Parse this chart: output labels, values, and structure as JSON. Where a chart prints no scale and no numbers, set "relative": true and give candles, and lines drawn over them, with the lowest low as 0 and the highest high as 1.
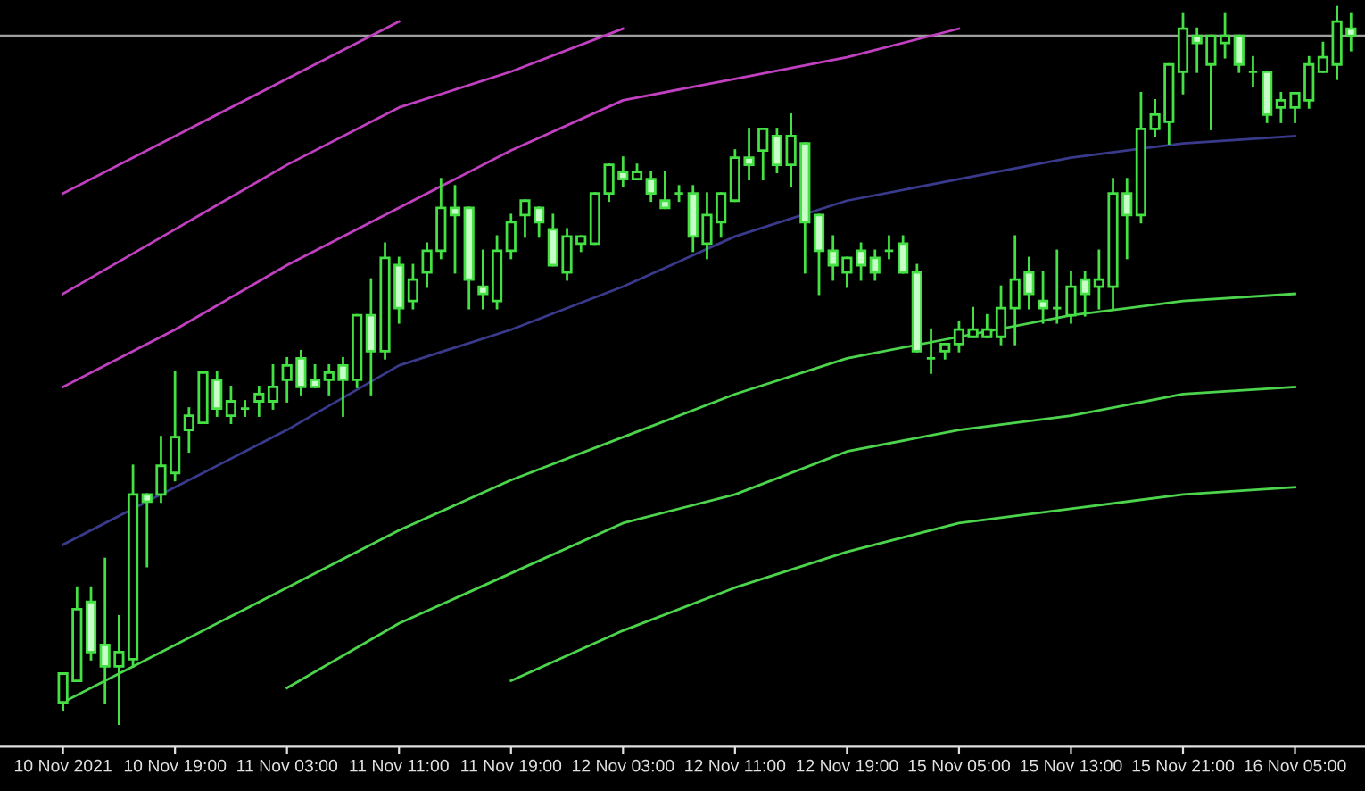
{
  "chart_data": {
    "type": "candlestick",
    "relative": true,
    "tick_labels": "x",
    "grid": false,
    "legend": false,
    "color": "#44e044",
    "categories": [
      "10 Nov 2021",
      null,
      null,
      null,
      null,
      null,
      null,
      null,
      "10 Nov 19:00",
      null,
      null,
      null,
      null,
      null,
      null,
      null,
      "11 Nov 03:00",
      null,
      null,
      null,
      null,
      null,
      null,
      null,
      "11 Nov 11:00",
      null,
      null,
      null,
      null,
      null,
      null,
      null,
      "11 Nov 19:00",
      null,
      null,
      null,
      null,
      null,
      null,
      null,
      "12 Nov 03:00",
      null,
      null,
      null,
      null,
      null,
      null,
      null,
      "12 Nov 11:00",
      null,
      null,
      null,
      null,
      null,
      null,
      null,
      "12 Nov 19:00",
      null,
      null,
      null,
      null,
      null,
      null,
      null,
      "15 Nov 05:00",
      null,
      null,
      null,
      null,
      null,
      null,
      null,
      "15 Nov 13:00",
      null,
      null,
      null,
      null,
      null,
      null,
      null,
      "15 Nov 21:00",
      null,
      null,
      null,
      null,
      null,
      null,
      null,
      "16 Nov 05:00",
      null,
      null,
      null,
      null
    ],
    "ohlc": [
      [
        0.03,
        0.07,
        0.02,
        0.07
      ],
      [
        0.06,
        0.19,
        0.06,
        0.16
      ],
      [
        0.17,
        0.19,
        0.09,
        0.1
      ],
      [
        0.11,
        0.23,
        0.03,
        0.08
      ],
      [
        0.08,
        0.15,
        0,
        0.1
      ],
      [
        0.09,
        0.36,
        0.08,
        0.32
      ],
      [
        0.32,
        0.32,
        0.22,
        0.31
      ],
      [
        0.32,
        0.4,
        0.31,
        0.36
      ],
      [
        0.35,
        0.49,
        0.34,
        0.4
      ],
      [
        0.41,
        0.44,
        0.38,
        0.43
      ],
      [
        0.42,
        0.49,
        0.42,
        0.49
      ],
      [
        0.48,
        0.49,
        0.43,
        0.44
      ],
      [
        0.43,
        0.47,
        0.42,
        0.45
      ],
      [
        0.44,
        0.45,
        0.43,
        0.44
      ],
      [
        0.45,
        0.47,
        0.43,
        0.46
      ],
      [
        0.45,
        0.5,
        0.44,
        0.47
      ],
      [
        0.48,
        0.51,
        0.45,
        0.5
      ],
      [
        0.51,
        0.52,
        0.46,
        0.47
      ],
      [
        0.48,
        0.5,
        0.47,
        0.47
      ],
      [
        0.48,
        0.5,
        0.46,
        0.49
      ],
      [
        0.5,
        0.51,
        0.43,
        0.48
      ],
      [
        0.48,
        0.57,
        0.47,
        0.57
      ],
      [
        0.57,
        0.62,
        0.46,
        0.52
      ],
      [
        0.52,
        0.67,
        0.51,
        0.65
      ],
      [
        0.64,
        0.65,
        0.56,
        0.58
      ],
      [
        0.59,
        0.64,
        0.58,
        0.62
      ],
      [
        0.63,
        0.67,
        0.61,
        0.66
      ],
      [
        0.66,
        0.76,
        0.65,
        0.72
      ],
      [
        0.72,
        0.75,
        0.63,
        0.71
      ],
      [
        0.72,
        0.72,
        0.58,
        0.62
      ],
      [
        0.61,
        0.66,
        0.58,
        0.6
      ],
      [
        0.59,
        0.68,
        0.58,
        0.66
      ],
      [
        0.66,
        0.71,
        0.65,
        0.7
      ],
      [
        0.71,
        0.73,
        0.68,
        0.73
      ],
      [
        0.72,
        0.72,
        0.68,
        0.7
      ],
      [
        0.69,
        0.71,
        0.64,
        0.64
      ],
      [
        0.63,
        0.69,
        0.62,
        0.68
      ],
      [
        0.67,
        0.68,
        0.66,
        0.68
      ],
      [
        0.67,
        0.74,
        0.67,
        0.74
      ],
      [
        0.74,
        0.78,
        0.73,
        0.78
      ],
      [
        0.77,
        0.79,
        0.75,
        0.76
      ],
      [
        0.76,
        0.78,
        0.76,
        0.77
      ],
      [
        0.76,
        0.77,
        0.73,
        0.74
      ],
      [
        0.73,
        0.77,
        0.72,
        0.72
      ],
      [
        0.74,
        0.75,
        0.73,
        0.74
      ],
      [
        0.74,
        0.75,
        0.66,
        0.68
      ],
      [
        0.67,
        0.74,
        0.65,
        0.71
      ],
      [
        0.7,
        0.74,
        0.68,
        0.74
      ],
      [
        0.73,
        0.8,
        0.73,
        0.79
      ],
      [
        0.79,
        0.83,
        0.76,
        0.78
      ],
      [
        0.8,
        0.83,
        0.76,
        0.83
      ],
      [
        0.82,
        0.83,
        0.77,
        0.78
      ],
      [
        0.78,
        0.85,
        0.75,
        0.82
      ],
      [
        0.81,
        0.81,
        0.63,
        0.7
      ],
      [
        0.71,
        0.71,
        0.6,
        0.66
      ],
      [
        0.66,
        0.68,
        0.62,
        0.64
      ],
      [
        0.63,
        0.65,
        0.61,
        0.65
      ],
      [
        0.66,
        0.67,
        0.62,
        0.64
      ],
      [
        0.65,
        0.66,
        0.62,
        0.63
      ],
      [
        0.66,
        0.68,
        0.65,
        0.66
      ],
      [
        0.67,
        0.68,
        0.63,
        0.63
      ],
      [
        0.63,
        0.64,
        0.52,
        0.52
      ],
      [
        0.51,
        0.55,
        0.49,
        0.51
      ],
      [
        0.52,
        0.53,
        0.51,
        0.53
      ],
      [
        0.53,
        0.56,
        0.52,
        0.55
      ],
      [
        0.54,
        0.58,
        0.54,
        0.55
      ],
      [
        0.54,
        0.57,
        0.54,
        0.55
      ],
      [
        0.54,
        0.61,
        0.53,
        0.58
      ],
      [
        0.58,
        0.68,
        0.53,
        0.62
      ],
      [
        0.63,
        0.65,
        0.58,
        0.6
      ],
      [
        0.59,
        0.63,
        0.56,
        0.58
      ],
      [
        0.58,
        0.66,
        0.56,
        0.58
      ],
      [
        0.57,
        0.63,
        0.56,
        0.61
      ],
      [
        0.62,
        0.63,
        0.57,
        0.6
      ],
      [
        0.61,
        0.66,
        0.58,
        0.62
      ],
      [
        0.61,
        0.76,
        0.58,
        0.74
      ],
      [
        0.74,
        0.76,
        0.65,
        0.71
      ],
      [
        0.71,
        0.88,
        0.7,
        0.83
      ],
      [
        0.83,
        0.87,
        0.82,
        0.85
      ],
      [
        0.84,
        0.92,
        0.81,
        0.92
      ],
      [
        0.91,
        0.99,
        0.88,
        0.97
      ],
      [
        0.96,
        0.97,
        0.91,
        0.95
      ],
      [
        0.92,
        0.96,
        0.83,
        0.96
      ],
      [
        0.95,
        0.99,
        0.93,
        0.96
      ],
      [
        0.96,
        0.96,
        0.91,
        0.92
      ],
      [
        0.91,
        0.93,
        0.89,
        0.91
      ],
      [
        0.91,
        0.91,
        0.84,
        0.85
      ],
      [
        0.86,
        0.88,
        0.84,
        0.87
      ],
      [
        0.86,
        0.88,
        0.84,
        0.88
      ],
      [
        0.87,
        0.93,
        0.86,
        0.92
      ],
      [
        0.91,
        0.95,
        0.91,
        0.93
      ],
      [
        0.92,
        1.0,
        0.9,
        0.98
      ],
      [
        0.97,
        0.99,
        0.94,
        0.96
      ]
    ],
    "series": [
      {
        "type": "line",
        "color": "#c040c0",
        "x": [
          "10 Nov 2021",
          "10 Nov 19:00",
          "11 Nov 03:00",
          "11 Nov 11:00",
          "11 Nov 19:00",
          "12 Nov 03:00",
          "12 Nov 11:00",
          "12 Nov 19:00",
          "15 Nov 05:00"
        ],
        "values": [
          0.47,
          0.55,
          0.64,
          0.72,
          0.8,
          0.87,
          0.9,
          0.93,
          0.97
        ]
      },
      {
        "type": "line",
        "color": "#c040c0",
        "x": [
          "10 Nov 2021",
          "10 Nov 19:00",
          "11 Nov 03:00",
          "11 Nov 11:00",
          "11 Nov 19:00",
          "12 Nov 03:00"
        ],
        "values": [
          0.6,
          0.69,
          0.78,
          0.86,
          0.91,
          0.97
        ]
      },
      {
        "type": "line",
        "color": "#c040c0",
        "x": [
          "10 Nov 2021",
          "10 Nov 19:00",
          "11 Nov 03:00",
          "11 Nov 11:00"
        ],
        "values": [
          0.74,
          0.82,
          0.9,
          0.98
        ]
      },
      {
        "type": "line",
        "color": "#3a3a8c",
        "x": [
          "10 Nov 2021",
          "10 Nov 19:00",
          "11 Nov 03:00",
          "11 Nov 11:00",
          "11 Nov 19:00",
          "12 Nov 03:00",
          "12 Nov 11:00",
          "12 Nov 19:00",
          "15 Nov 05:00",
          "15 Nov 13:00",
          "15 Nov 21:00",
          "16 Nov 05:00"
        ],
        "values": [
          0.25,
          0.33,
          0.41,
          0.5,
          0.55,
          0.61,
          0.68,
          0.73,
          0.76,
          0.79,
          0.81,
          0.82
        ]
      },
      {
        "type": "line",
        "color": "#4cd44c",
        "x": [
          "10 Nov 2021",
          "10 Nov 19:00",
          "11 Nov 03:00",
          "11 Nov 11:00",
          "11 Nov 19:00",
          "12 Nov 03:00",
          "12 Nov 11:00",
          "12 Nov 19:00",
          "15 Nov 05:00",
          "15 Nov 13:00",
          "15 Nov 21:00",
          "16 Nov 05:00"
        ],
        "values": [
          0.03,
          0.11,
          0.19,
          0.27,
          0.34,
          0.4,
          0.46,
          0.51,
          0.54,
          0.57,
          0.59,
          0.6
        ]
      },
      {
        "type": "line",
        "color": "#4cd44c",
        "x": [
          "11 Nov 03:00",
          "11 Nov 11:00",
          "11 Nov 19:00",
          "12 Nov 03:00",
          "12 Nov 11:00",
          "12 Nov 19:00",
          "15 Nov 05:00",
          "15 Nov 13:00",
          "15 Nov 21:00",
          "16 Nov 05:00"
        ],
        "values": [
          0.05,
          0.14,
          0.21,
          0.28,
          0.32,
          0.38,
          0.41,
          0.43,
          0.46,
          0.47
        ]
      },
      {
        "type": "line",
        "color": "#4cd44c",
        "x": [
          "11 Nov 19:00",
          "12 Nov 03:00",
          "12 Nov 11:00",
          "12 Nov 19:00",
          "15 Nov 05:00",
          "15 Nov 13:00",
          "15 Nov 21:00",
          "16 Nov 05:00"
        ],
        "values": [
          0.06,
          0.13,
          0.19,
          0.24,
          0.28,
          0.3,
          0.32,
          0.33
        ]
      }
    ],
    "ref_lines": [
      {
        "axis": "y",
        "value": 0.96,
        "color": "#a0a0a0"
      }
    ]
  }
}
